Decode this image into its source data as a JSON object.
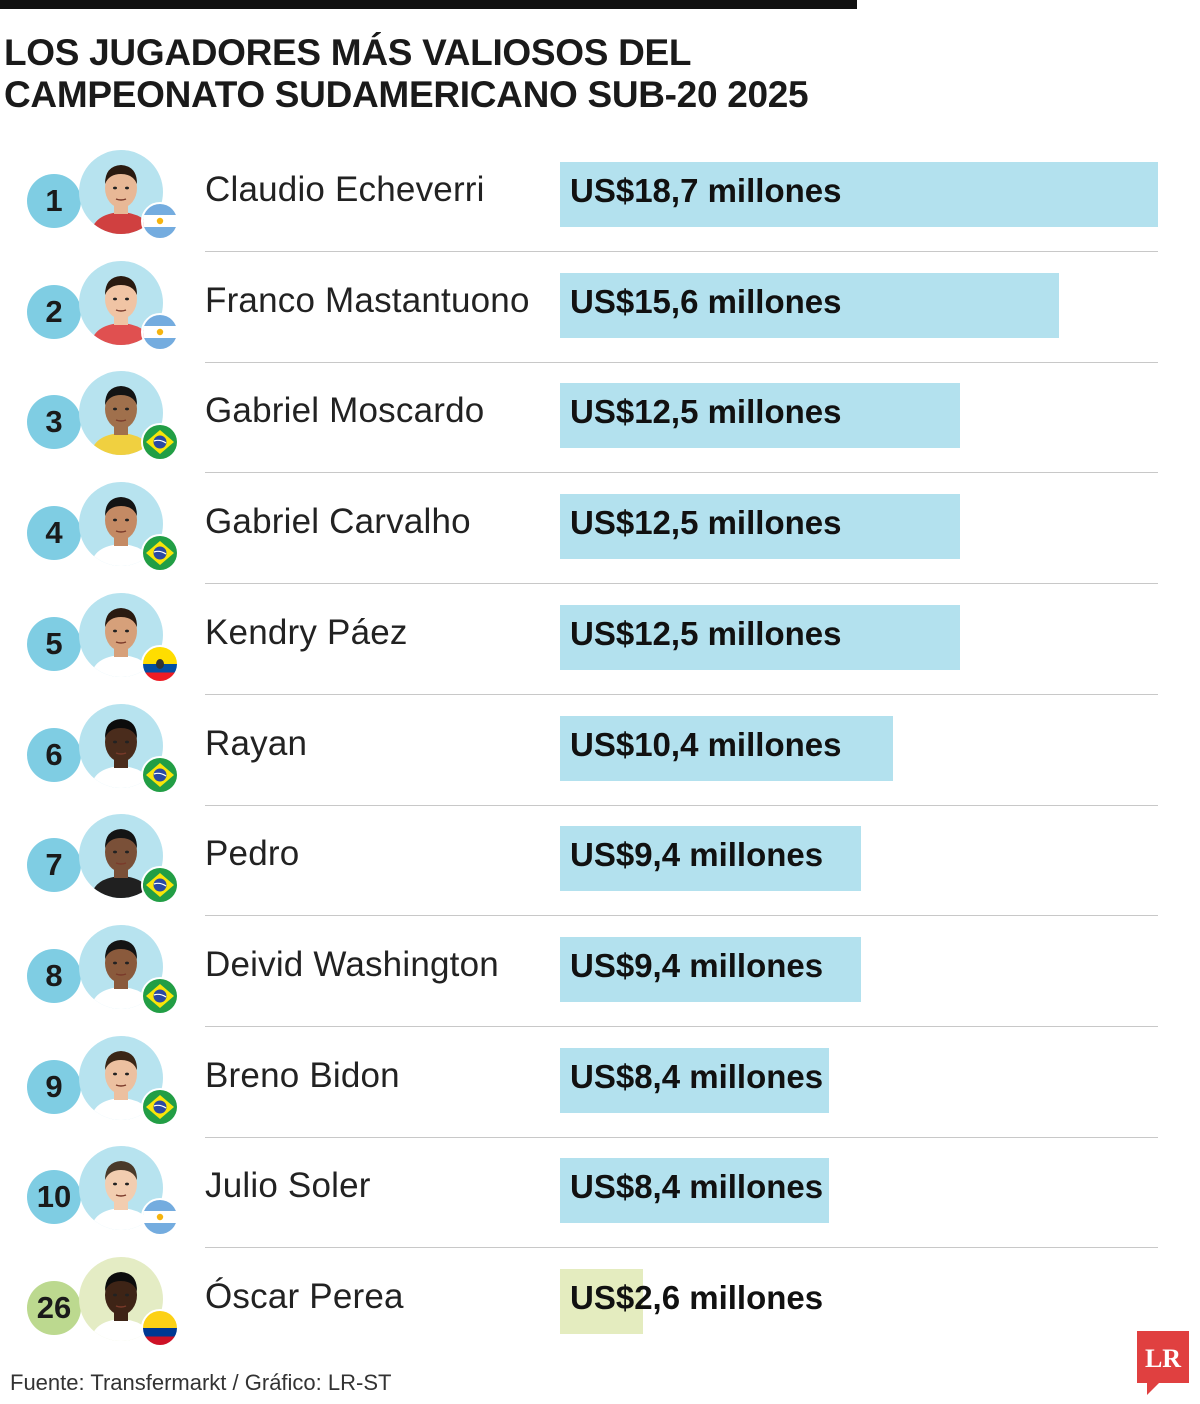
{
  "title_lines": [
    "LOS JUGADORES MÁS VALIOSOS DEL",
    "CAMPEONATO SUDAMERICANO SUB-20 2025"
  ],
  "source": "Fuente: Transfermarkt / Gráfico: LR-ST",
  "logo_text": "LR",
  "colors": {
    "bar": "#b3e1ee",
    "bar_highlight": "#e4ecbf",
    "rank_circle": "#7fcde3",
    "rank_circle_highlight": "#bcd98f",
    "logo_red": "#e04040"
  },
  "chart_data": {
    "type": "bar",
    "orientation": "horizontal",
    "unit": "US$ millones",
    "xlim": [
      0,
      18.7
    ],
    "grid": false,
    "legend": "none",
    "rows": [
      {
        "rank": "1",
        "name": "Claudio Echeverri",
        "value": 18.7,
        "label": "US$18,7 millones",
        "flag": "argentina",
        "highlight": false
      },
      {
        "rank": "2",
        "name": "Franco Mastantuono",
        "value": 15.6,
        "label": "US$15,6 millones",
        "flag": "argentina",
        "highlight": false
      },
      {
        "rank": "3",
        "name": "Gabriel Moscardo",
        "value": 12.5,
        "label": "US$12,5 millones",
        "flag": "brazil",
        "highlight": false
      },
      {
        "rank": "4",
        "name": "Gabriel Carvalho",
        "value": 12.5,
        "label": "US$12,5 millones",
        "flag": "brazil",
        "highlight": false
      },
      {
        "rank": "5",
        "name": "Kendry Páez",
        "value": 12.5,
        "label": "US$12,5 millones",
        "flag": "ecuador",
        "highlight": false
      },
      {
        "rank": "6",
        "name": "Rayan",
        "value": 10.4,
        "label": "US$10,4 millones",
        "flag": "brazil",
        "highlight": false
      },
      {
        "rank": "7",
        "name": "Pedro",
        "value": 9.4,
        "label": "US$9,4 millones",
        "flag": "brazil",
        "highlight": false
      },
      {
        "rank": "8",
        "name": "Deivid Washington",
        "value": 9.4,
        "label": "US$9,4 millones",
        "flag": "brazil",
        "highlight": false
      },
      {
        "rank": "9",
        "name": "Breno Bidon",
        "value": 8.4,
        "label": "US$8,4 millones",
        "flag": "brazil",
        "highlight": false
      },
      {
        "rank": "10",
        "name": "Julio Soler",
        "value": 8.4,
        "label": "US$8,4 millones",
        "flag": "argentina",
        "highlight": false
      },
      {
        "rank": "26",
        "name": "Óscar Perea",
        "value": 2.6,
        "label": "US$2,6 millones",
        "flag": "colombia",
        "highlight": true
      }
    ]
  }
}
